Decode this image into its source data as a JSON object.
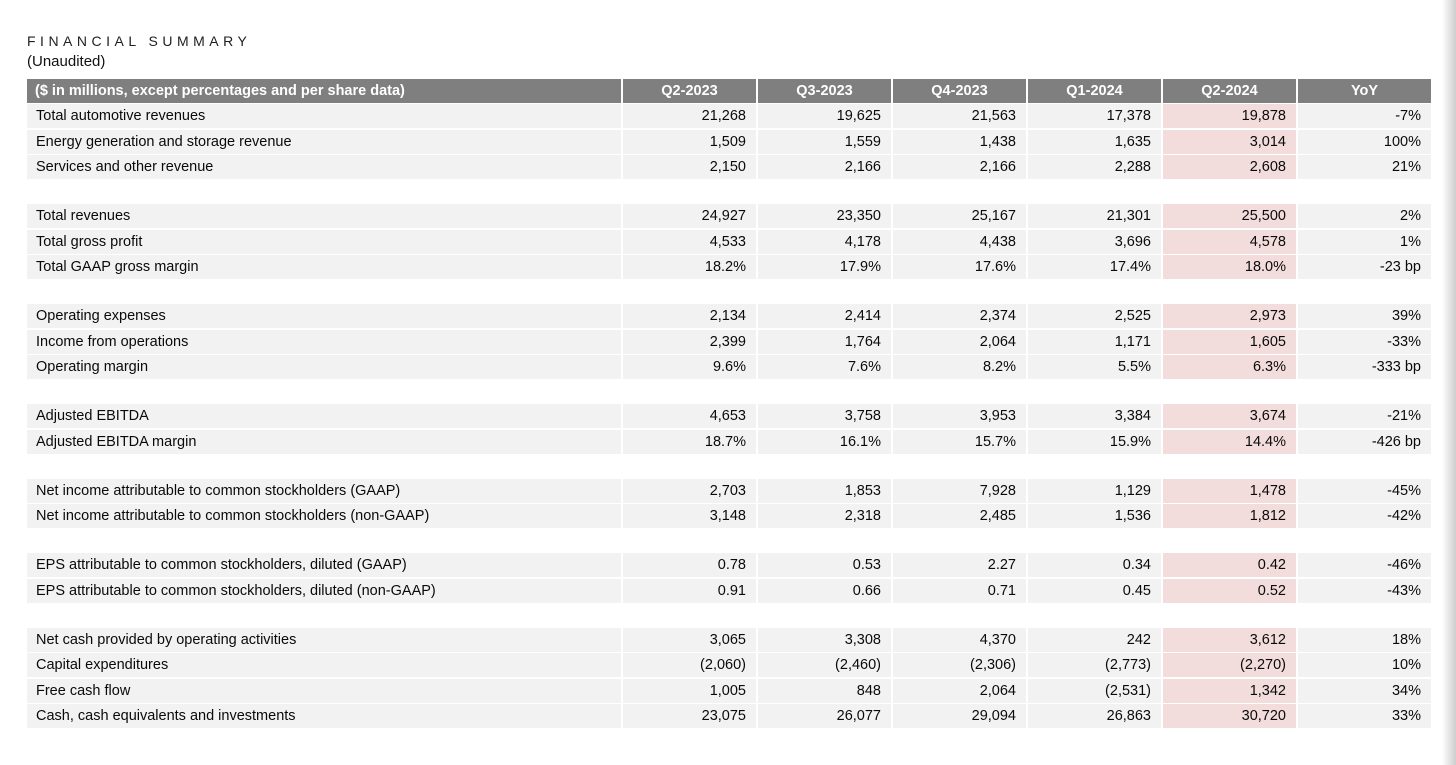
{
  "title": "FINANCIAL SUMMARY",
  "subtitle": "(Unaudited)",
  "colors": {
    "header_bg": "#7f7f7f",
    "header_text": "#ffffff",
    "row_bg": "#f2f2f2",
    "highlight_bg": "#f2dddc",
    "text": "#0a0a0a"
  },
  "table": {
    "header": {
      "label": "($ in millions, except percentages and per share data)",
      "columns": [
        "Q2-2023",
        "Q3-2023",
        "Q4-2023",
        "Q1-2024",
        "Q2-2024",
        "YoY"
      ]
    },
    "highlight_column": "Q2-2024",
    "highlight_column_index": 4,
    "groups": [
      {
        "rows": [
          {
            "label": "Total automotive revenues",
            "values": [
              "21,268",
              "19,625",
              "21,563",
              "17,378",
              "19,878",
              "-7%"
            ]
          },
          {
            "label": "Energy generation and storage revenue",
            "values": [
              "1,509",
              "1,559",
              "1,438",
              "1,635",
              "3,014",
              "100%"
            ]
          },
          {
            "label": "Services and other revenue",
            "values": [
              "2,150",
              "2,166",
              "2,166",
              "2,288",
              "2,608",
              "21%"
            ]
          }
        ]
      },
      {
        "rows": [
          {
            "label": "Total revenues",
            "values": [
              "24,927",
              "23,350",
              "25,167",
              "21,301",
              "25,500",
              "2%"
            ]
          },
          {
            "label": "Total gross profit",
            "values": [
              "4,533",
              "4,178",
              "4,438",
              "3,696",
              "4,578",
              "1%"
            ]
          },
          {
            "label": "Total GAAP gross margin",
            "values": [
              "18.2%",
              "17.9%",
              "17.6%",
              "17.4%",
              "18.0%",
              "-23 bp"
            ]
          }
        ]
      },
      {
        "rows": [
          {
            "label": "Operating expenses",
            "values": [
              "2,134",
              "2,414",
              "2,374",
              "2,525",
              "2,973",
              "39%"
            ]
          },
          {
            "label": "Income from operations",
            "values": [
              "2,399",
              "1,764",
              "2,064",
              "1,171",
              "1,605",
              "-33%"
            ]
          },
          {
            "label": "Operating margin",
            "values": [
              "9.6%",
              "7.6%",
              "8.2%",
              "5.5%",
              "6.3%",
              "-333 bp"
            ]
          }
        ]
      },
      {
        "rows": [
          {
            "label": "Adjusted EBITDA",
            "values": [
              "4,653",
              "3,758",
              "3,953",
              "3,384",
              "3,674",
              "-21%"
            ]
          },
          {
            "label": "Adjusted EBITDA margin",
            "values": [
              "18.7%",
              "16.1%",
              "15.7%",
              "15.9%",
              "14.4%",
              "-426 bp"
            ]
          }
        ]
      },
      {
        "rows": [
          {
            "label": "Net income attributable to common stockholders (GAAP)",
            "values": [
              "2,703",
              "1,853",
              "7,928",
              "1,129",
              "1,478",
              "-45%"
            ]
          },
          {
            "label": "Net income attributable to common stockholders (non-GAAP)",
            "values": [
              "3,148",
              "2,318",
              "2,485",
              "1,536",
              "1,812",
              "-42%"
            ]
          }
        ]
      },
      {
        "rows": [
          {
            "label": "EPS attributable to common stockholders, diluted (GAAP)",
            "values": [
              "0.78",
              "0.53",
              "2.27",
              "0.34",
              "0.42",
              "-46%"
            ]
          },
          {
            "label": "EPS attributable to common stockholders, diluted (non-GAAP)",
            "values": [
              "0.91",
              "0.66",
              "0.71",
              "0.45",
              "0.52",
              "-43%"
            ]
          }
        ]
      },
      {
        "rows": [
          {
            "label": "Net cash provided by operating activities",
            "values": [
              "3,065",
              "3,308",
              "4,370",
              "242",
              "3,612",
              "18%"
            ]
          },
          {
            "label": "Capital expenditures",
            "values": [
              "(2,060)",
              "(2,460)",
              "(2,306)",
              "(2,773)",
              "(2,270)",
              "10%"
            ]
          },
          {
            "label": "Free cash flow",
            "values": [
              "1,005",
              "848",
              "2,064",
              "(2,531)",
              "1,342",
              "34%"
            ]
          },
          {
            "label": "Cash, cash equivalents and investments",
            "values": [
              "23,075",
              "26,077",
              "29,094",
              "26,863",
              "30,720",
              "33%"
            ]
          }
        ]
      }
    ]
  }
}
